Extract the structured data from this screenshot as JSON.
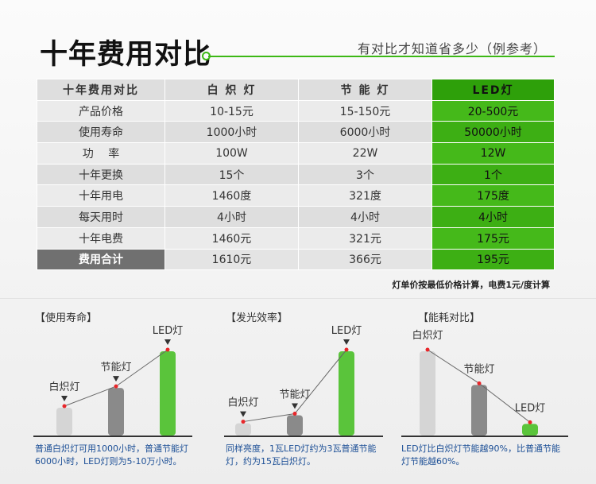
{
  "header": {
    "title": "十年费用对比",
    "subtitle": "有对比才知道省多少（例参考）"
  },
  "table": {
    "columns": [
      "十年费用对比",
      "白 炽 灯",
      "节 能 灯",
      "LED灯"
    ],
    "rows": [
      [
        "产品价格",
        "10-15元",
        "15-150元",
        "20-500元"
      ],
      [
        "使用寿命",
        "1000小时",
        "6000小时",
        "50000小时"
      ],
      [
        "功　 率",
        "100W",
        "22W",
        "12W"
      ],
      [
        "十年更换",
        "15个",
        "3个",
        "1个"
      ],
      [
        "十年用电",
        "1460度",
        "321度",
        "175度"
      ],
      [
        "每天用时",
        "4小时",
        "4小时",
        "4小时"
      ],
      [
        "十年电费",
        "1460元",
        "321元",
        "175元"
      ],
      [
        "费用合计",
        "1610元",
        "366元",
        "195元"
      ]
    ],
    "note": "灯单价按最低价格计算，电费1元/度计算"
  },
  "colors": {
    "accent_green": "#3cb815",
    "incandescent_bar": "#d5d5d5",
    "cfl_bar": "#8a8a8a",
    "led_bar": "#5ac43b",
    "marker": "#e8262a"
  },
  "chart_data": [
    {
      "type": "bar",
      "title": "【使用寿命】",
      "categories": [
        "白炽灯",
        "节能灯",
        "LED灯"
      ],
      "values": [
        1000,
        6000,
        50000
      ],
      "caption": "普通白炽灯可用1000小时，普通节能灯6000小时，LED灯则为5-10万小时。"
    },
    {
      "type": "bar",
      "title": "【发光效率】",
      "categories": [
        "白炽灯",
        "节能灯",
        "LED灯"
      ],
      "values": [
        1,
        3,
        15
      ],
      "caption": "同样亮度，1瓦LED灯约为3瓦普通节能灯，约为15瓦白炽灯。"
    },
    {
      "type": "bar",
      "title": "【能耗对比】",
      "categories": [
        "白炽灯",
        "节能灯",
        "LED灯"
      ],
      "values": [
        100,
        60,
        10
      ],
      "caption": "LED灯比白炽灯节能越90%，比普通节能灯节能越60%。"
    }
  ]
}
